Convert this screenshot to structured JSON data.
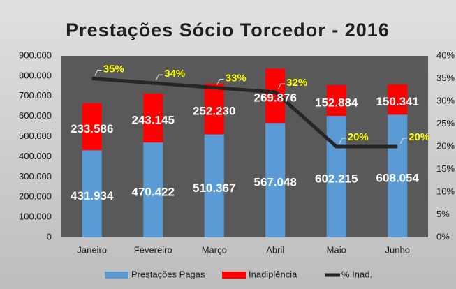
{
  "chart_data": {
    "type": "bar-line",
    "title": "Prestações Sócio Torcedor - 2016",
    "categories": [
      "Janeiro",
      "Fevereiro",
      "Março",
      "Abril",
      "Maio",
      "Junho"
    ],
    "series": [
      {
        "name": "Prestações Pagas",
        "color": "#5b9bd5",
        "type": "bar",
        "values": [
          431934,
          470422,
          510367,
          567048,
          602215,
          608054
        ],
        "value_labels": [
          "431.934",
          "470.422",
          "510.367",
          "567.048",
          "602.215",
          "608.054"
        ]
      },
      {
        "name": "Inadiplência",
        "color": "#ff0000",
        "type": "bar",
        "values": [
          233586,
          243145,
          252230,
          269876,
          152884,
          150341
        ],
        "value_labels": [
          "233.586",
          "243.145",
          "252.230",
          "269.876",
          "152.884",
          "150.341"
        ]
      },
      {
        "name": "% Inad.",
        "color": "#262626",
        "type": "line",
        "axis": "y2",
        "values": [
          35,
          34,
          33,
          32,
          20,
          20
        ],
        "value_labels": [
          "35%",
          "34%",
          "33%",
          "32%",
          "20%",
          "20%"
        ]
      }
    ],
    "stacked": true,
    "ylim": [
      0,
      900000
    ],
    "yticks": [
      0,
      {
        "value": 100000,
        "label": "100.000"
      },
      {
        "value": 200000,
        "label": "200.000"
      },
      {
        "value": 300000,
        "label": "300.000"
      },
      {
        "value": 400000,
        "label": "400.000"
      },
      {
        "value": 500000,
        "label": "500.000"
      },
      {
        "value": 600000,
        "label": "600.000"
      },
      {
        "value": 700000,
        "label": "700.000"
      },
      {
        "value": 800000,
        "label": "800.000"
      },
      {
        "value": 900000,
        "label": "900.000"
      }
    ],
    "y2lim": [
      0,
      40
    ],
    "y2ticks": [
      {
        "value": 0,
        "label": "0%"
      },
      {
        "value": 5,
        "label": "5%"
      },
      {
        "value": 10,
        "label": "10%"
      },
      {
        "value": 15,
        "label": "15%"
      },
      {
        "value": 20,
        "label": "20%"
      },
      {
        "value": 25,
        "label": "25%"
      },
      {
        "value": 30,
        "label": "30%"
      },
      {
        "value": 35,
        "label": "35%"
      },
      {
        "value": 40,
        "label": "40%"
      }
    ],
    "grid": false,
    "legend": "bottom"
  }
}
